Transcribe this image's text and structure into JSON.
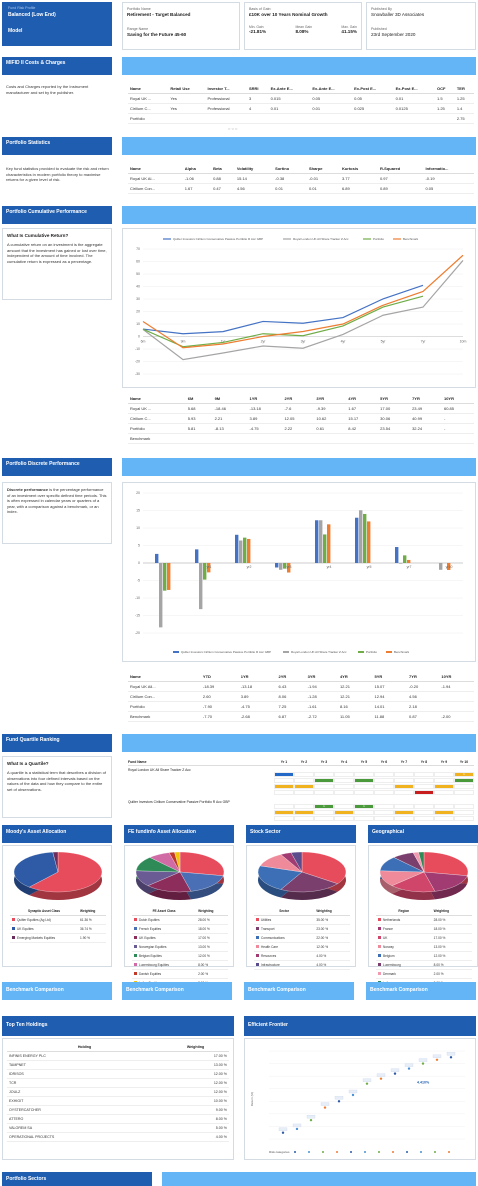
{
  "header": {
    "badge_top": "Fund Risk Profile",
    "badge_value": "Balanced (Low End)",
    "badge_sub": "Model",
    "portfolio_name_label": "Portfolio Name",
    "portfolio_name": "Retirement - Target Balanced",
    "range_name_label": "Range Name",
    "range_name": "Saving for the Future 45-60",
    "basis_label": "Basis of Gain:",
    "basis_value": "£10K over 10 Years Nominal Growth",
    "min_gain_label": "Min. Gain",
    "min_gain": "-21.81%",
    "mean_gain_label": "Mean Gain",
    "mean_gain": "8.08%",
    "max_gain_label": "Max. Gain",
    "max_gain": "41.15%",
    "published_by_label": "Published By",
    "published_by": "Snowballer 3D Associates",
    "published_label": "Published",
    "published": "23rd September 2020"
  },
  "mifid": {
    "title": "MIFID II Costs & Charges",
    "desc": "Costs and Charges reported by the Instrument manufacturer and set by the publisher.",
    "columns": [
      "Name",
      "Retail Use",
      "Investor T...",
      "SRRI",
      "Ex-Ante E...",
      "Ex-Ante E...",
      "Ex-Post E...",
      "Ex-Post E...",
      "OCF",
      "TER"
    ],
    "rows": [
      [
        "Royal UK ...",
        "Yes",
        "Professional",
        "3",
        "0.015",
        "0.05",
        "0.05",
        "0.01",
        "1.5",
        "1.25"
      ],
      [
        "Cirilium C...",
        "Yes",
        "Professional",
        "4",
        "0.01",
        "0.01",
        "0.025",
        "0.0125",
        "1.25",
        "1.4"
      ],
      [
        "Portfolio",
        "",
        "",
        "",
        "",
        "",
        "",
        "",
        "",
        "2.75"
      ]
    ]
  },
  "stats": {
    "title": "Portfolio Statistics",
    "desc": "Key fund statistics provided to evaluate the risk and return characteristics in modern portfolio theory to maximise returns for a given level of risk.",
    "columns": [
      "Name",
      "Alpha",
      "Beta",
      "Volatility",
      "Sortino",
      "Sharpe",
      "Kurtosis",
      "R-Squared",
      "Informatio..."
    ],
    "rows": [
      [
        "Royal UK Al...",
        "-1.06",
        "0.88",
        "15.14",
        "-0.38",
        "-0.01",
        "3.77",
        "0.97",
        "-0.19"
      ],
      [
        "Cirilium Con...",
        "1.67",
        "0.47",
        "4.56",
        "0.01",
        "0.01",
        "6.89",
        "0.89",
        "0.05"
      ]
    ]
  },
  "cumulative": {
    "title": "Portfolio Cumulative Performance",
    "subtitle": "What Is Cumulative Return?",
    "desc": "A cumulative return on an investment is the aggregate amount that the investment has gained or lost over time, independent of the amount of time involved. The cumulative return is expressed as a percentage.",
    "columns": [
      "Name",
      "6M",
      "9M",
      "1YR",
      "2YR",
      "3YR",
      "4YR",
      "5YR",
      "7YR",
      "10YR"
    ],
    "rows": [
      [
        "Royal UK ...",
        "5.68",
        "-18.46",
        "-13.18",
        "-7.6",
        "-9.39",
        "1.67",
        "17.00",
        "23.49",
        "60.85"
      ],
      [
        "Cirilium C...",
        "5.93",
        "2.21",
        "3.89",
        "12.05",
        "10.62",
        "15.17",
        "30.06",
        "40.99",
        "-"
      ],
      [
        "Portfolio",
        "5.81",
        "-8.13",
        "-4.75",
        "2.22",
        "0.61",
        "8.42",
        "23.54",
        "32.24",
        "-"
      ],
      [
        "Benchmark",
        "",
        "",
        "",
        "",
        "",
        "",
        "",
        "",
        ""
      ]
    ]
  },
  "discrete": {
    "title": "Portfolio Discrete Performance",
    "desc_bold": "Discrete performance",
    "desc": " is the percentage performance of an investment over specific defined time periods. This is often expressed in calendar years or quarters of a year, with a comparison against a benchmark, or an index.",
    "columns": [
      "Name",
      "YTD",
      "1YR",
      "2YR",
      "3YR",
      "4YR",
      "5YR",
      "7YR",
      "10YR"
    ],
    "rows": [
      [
        "Royal UK All...",
        "-18.39",
        "-13.18",
        "6.43",
        "-1.94",
        "12.21",
        "15.07",
        "-0.20",
        "-1.94"
      ],
      [
        "Cirilium Con...",
        "2.60",
        "3.89",
        "8.06",
        "-1.28",
        "12.21",
        "12.94",
        "4.56",
        ""
      ],
      [
        "Portfolio",
        "-7.90",
        "-4.75",
        "7.25",
        "-1.61",
        "8.16",
        "14.01",
        "2.18",
        ""
      ],
      [
        "Benchmark",
        "-7.70",
        "-2.68",
        "6.87",
        "-2.72",
        "11.05",
        "11.88",
        "0.87",
        "-2.00"
      ]
    ]
  },
  "quartile": {
    "title": "Fund Quartile Ranking",
    "subtitle": "What Is a Quartile?",
    "desc": "A quartile is a statistical term that describes a division of observations into four defined intervals based on the values of the data and how they compare to the entire set of observations.",
    "columns": [
      "Fund Name",
      "Yr 1",
      "Yr 2",
      "Yr 3",
      "Yr 4",
      "Yr 5",
      "Yr 6",
      "Yr 7",
      "Yr 8",
      "Yr 9",
      "Yr 10"
    ],
    "fund1": "Royal London UK All Share Tracker Z Acc",
    "fund2": "Quilter Investors Cirilium Conservative Passive Portfolio R Acc GBP",
    "fund1_q": [
      "",
      "2",
      "",
      "1",
      "",
      "",
      "1",
      "",
      "",
      "1"
    ],
    "fund2_q": [
      "",
      "",
      "1",
      "",
      "1",
      "",
      "",
      "",
      "",
      ""
    ]
  },
  "charts": {
    "colors": {
      "s1": "#4472c4",
      "s2": "#a5a5a5",
      "s3": "#70ad47",
      "s4": "#ed7d31"
    },
    "legend": [
      "Quilter Investors Cirilium Conservative Passive Portfolio R Acc GBP",
      "Royal London UK All Share Tracker Z Acc",
      "Portfolio",
      "Benchmark"
    ]
  },
  "chart_data": [
    {
      "type": "line",
      "categories": [
        "6m",
        "9m",
        "1yr",
        "2yr",
        "3yr",
        "4yr",
        "5yr",
        "7yr",
        "10m"
      ],
      "series": [
        {
          "name": "Quilter Investors Cirilium Conservative Passive Portfolio R Acc GBP",
          "values": [
            5.93,
            2.21,
            3.89,
            12.05,
            10.62,
            15.17,
            30.06,
            40.99,
            null
          ]
        },
        {
          "name": "Royal London UK All Share Tracker Z Acc",
          "values": [
            5.68,
            -18.46,
            -13.18,
            -7.6,
            -9.39,
            1.67,
            17.0,
            23.49,
            60.85
          ]
        },
        {
          "name": "Portfolio",
          "values": [
            5.81,
            -8.13,
            -4.75,
            2.22,
            0.61,
            8.42,
            23.54,
            32.24,
            null
          ]
        },
        {
          "name": "Benchmark",
          "values": [
            12,
            -9,
            -6,
            0,
            4,
            10,
            25,
            36,
            65
          ]
        }
      ],
      "ylim": [
        -30,
        70
      ]
    },
    {
      "type": "bar",
      "categories": [
        "",
        "yr1",
        "yr2",
        "yr3",
        "yr4",
        "yr5",
        "yr7",
        "yr10"
      ],
      "series": [
        {
          "name": "Quilter Investors Cirilium Conservative Passive Portfolio R Acc GBP",
          "values": [
            2.6,
            3.89,
            8.06,
            -1.28,
            12.21,
            12.94,
            4.56,
            0
          ]
        },
        {
          "name": "Royal London UK All Share Tracker Z Acc",
          "values": [
            -18.39,
            -13.18,
            6.43,
            -1.94,
            12.21,
            15.07,
            -0.2,
            -1.94
          ]
        },
        {
          "name": "Portfolio",
          "values": [
            -7.9,
            -4.75,
            7.25,
            -1.61,
            8.16,
            14.01,
            2.18,
            0
          ]
        },
        {
          "name": "Benchmark",
          "values": [
            -7.7,
            -2.68,
            6.87,
            -2.72,
            11.05,
            11.88,
            0.87,
            -2.0
          ]
        }
      ],
      "ylim": [
        -20,
        20
      ]
    },
    {
      "type": "pie",
      "title": "Moody's Asset Allocation",
      "categories": [
        "Quilter Equities (Ag Ltd)",
        "UK Equities",
        "Emerging Markets Equities"
      ],
      "values": [
        61.36,
        36.74,
        1.9
      ]
    },
    {
      "type": "pie",
      "title": "FE fundinfo Asset Allocation",
      "categories": [
        "Dutch Equities",
        "French Equities",
        "UK Equities",
        "Norwegian Equities",
        "Belgian Equities",
        "Luxembourg Equities",
        "Danish Equities",
        "Indian Equities"
      ],
      "values": [
        28.0,
        18.0,
        17.0,
        13.0,
        12.0,
        8.0,
        2.0,
        2.0
      ]
    },
    {
      "type": "pie",
      "title": "Stock Sector",
      "categories": [
        "Utilities",
        "Transport",
        "Communications",
        "Health Care",
        "Resources",
        "Infrastructure"
      ],
      "values": [
        35.0,
        23.0,
        22.0,
        12.0,
        4.0,
        4.0
      ]
    },
    {
      "type": "pie",
      "title": "Geographical",
      "categories": [
        "Netherlands",
        "France",
        "UK",
        "Norway",
        "Belgium",
        "Luxembourg",
        "Denmark",
        "India"
      ],
      "values": [
        28.0,
        18.0,
        17.0,
        13.0,
        12.0,
        8.0,
        2.0,
        2.0
      ]
    },
    {
      "type": "scatter",
      "title": "Efficient Frontier",
      "xlabel": "Risk (Volatility) / Risk Level (Ann.)",
      "ylabel": "Return (%)",
      "x": [
        1,
        2,
        3,
        4,
        5,
        6,
        7,
        8,
        9,
        10,
        11,
        12,
        13
      ],
      "y": [
        0.5,
        0.8,
        1.5,
        2.5,
        3.0,
        3.5,
        4.4,
        4.8,
        5.2,
        5.6,
        6.0,
        6.3,
        6.5
      ]
    }
  ],
  "pies": {
    "moody": {
      "title": "Moody's Asset Allocation",
      "col1": "Synaptic Asset Class",
      "col2": "Weighting",
      "rows": [
        [
          "Quilter Equities (Ag Ltd)",
          "61.36 %"
        ],
        [
          "UK Equities",
          "36.74 %"
        ],
        [
          "Emerging Markets Equities",
          "1.90 %"
        ]
      ]
    },
    "fe": {
      "title": "FE fundinfo Asset Allocation",
      "col1": "FE Asset Class",
      "col2": "Weighting",
      "rows": [
        [
          "Dutch Equities",
          "28.00 %"
        ],
        [
          "French Equities",
          "18.00 %"
        ],
        [
          "UK Equities",
          "17.00 %"
        ],
        [
          "Norwegian Equities",
          "13.00 %"
        ],
        [
          "Belgian Equities",
          "12.00 %"
        ],
        [
          "Luxembourg Equities",
          "8.00 %"
        ],
        [
          "Danish Equities",
          "2.00 %"
        ],
        [
          "Indian Equities",
          "2.00 %"
        ]
      ]
    },
    "sector": {
      "title": "Stock Sector",
      "col1": "Sector",
      "col2": "Weighting",
      "rows": [
        [
          "Utilities",
          "35.00 %"
        ],
        [
          "Transport",
          "23.00 %"
        ],
        [
          "Communications",
          "22.00 %"
        ],
        [
          "Health Care",
          "12.00 %"
        ],
        [
          "Resources",
          "4.00 %"
        ],
        [
          "Infrastructure",
          "4.00 %"
        ]
      ]
    },
    "geo": {
      "title": "Geographical",
      "col1": "Region",
      "col2": "Weighting",
      "rows": [
        [
          "Netherlands",
          "28.00 %"
        ],
        [
          "France",
          "18.00 %"
        ],
        [
          "UK",
          "17.00 %"
        ],
        [
          "Norway",
          "13.00 %"
        ],
        [
          "Belgium",
          "12.00 %"
        ],
        [
          "Luxembourg",
          "8.00 %"
        ],
        [
          "Denmark",
          "2.00 %"
        ],
        [
          "India",
          "2.00 %"
        ]
      ]
    }
  },
  "benchmark": {
    "label": "Benchmark Comparison"
  },
  "holdings": {
    "title": "Top Ten Holdings",
    "col1": "Holding",
    "col2": "Weighting",
    "rows": [
      [
        "INFINIS ENERGY PLC",
        "17.00 %"
      ],
      [
        "TAMPNET",
        "13.00 %"
      ],
      [
        "IDRISOS",
        "12.00 %"
      ],
      [
        "TCR",
        "12.00 %"
      ],
      [
        "JOULZ",
        "12.00 %"
      ],
      [
        "EXHIGIT",
        "10.00 %"
      ],
      [
        "OYSTERCATCHER",
        "9.00 %"
      ],
      [
        "ATTERO",
        "8.00 %"
      ],
      [
        "VALOREM SA",
        "5.00 %"
      ],
      [
        "OPERATIONAL PROJECTS",
        "4.00 %"
      ]
    ]
  },
  "frontier": {
    "title": "Efficient Frontier",
    "ylabel": "Return (%)",
    "highlight": "4.410%",
    "legend_label": "Risk categories"
  },
  "footer": {
    "title": "Portfolio Sectors"
  }
}
